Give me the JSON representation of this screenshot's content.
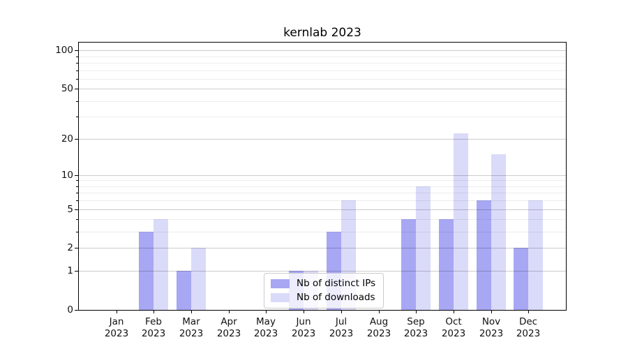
{
  "title": "kernlab 2023",
  "chart_data": {
    "type": "bar",
    "title": "kernlab 2023",
    "categories": [
      "Jan 2023",
      "Feb 2023",
      "Mar 2023",
      "Apr 2023",
      "May 2023",
      "Jun 2023",
      "Jul 2023",
      "Aug 2023",
      "Sep 2023",
      "Oct 2023",
      "Nov 2023",
      "Dec 2023"
    ],
    "series": [
      {
        "name": "Nb of distinct IPs",
        "color": "#a7a7f3",
        "values": [
          0,
          3,
          1,
          0,
          0,
          1,
          3,
          0,
          4,
          4,
          6,
          2
        ]
      },
      {
        "name": "Nb of downloads",
        "color": "#dadaf9",
        "values": [
          0,
          4,
          2,
          0,
          0,
          1,
          6,
          0,
          8,
          22,
          15,
          6
        ]
      }
    ],
    "xlabel": "",
    "ylabel": "",
    "yscale": "log1p",
    "ylim": [
      0,
      115
    ],
    "yticks_major": [
      0,
      1,
      2,
      5,
      10,
      20,
      50,
      100
    ],
    "yticks_minor": [
      3,
      4,
      6,
      7,
      8,
      9,
      30,
      40,
      60,
      70,
      80,
      90
    ],
    "grid": true,
    "legend_position": "lower center"
  }
}
